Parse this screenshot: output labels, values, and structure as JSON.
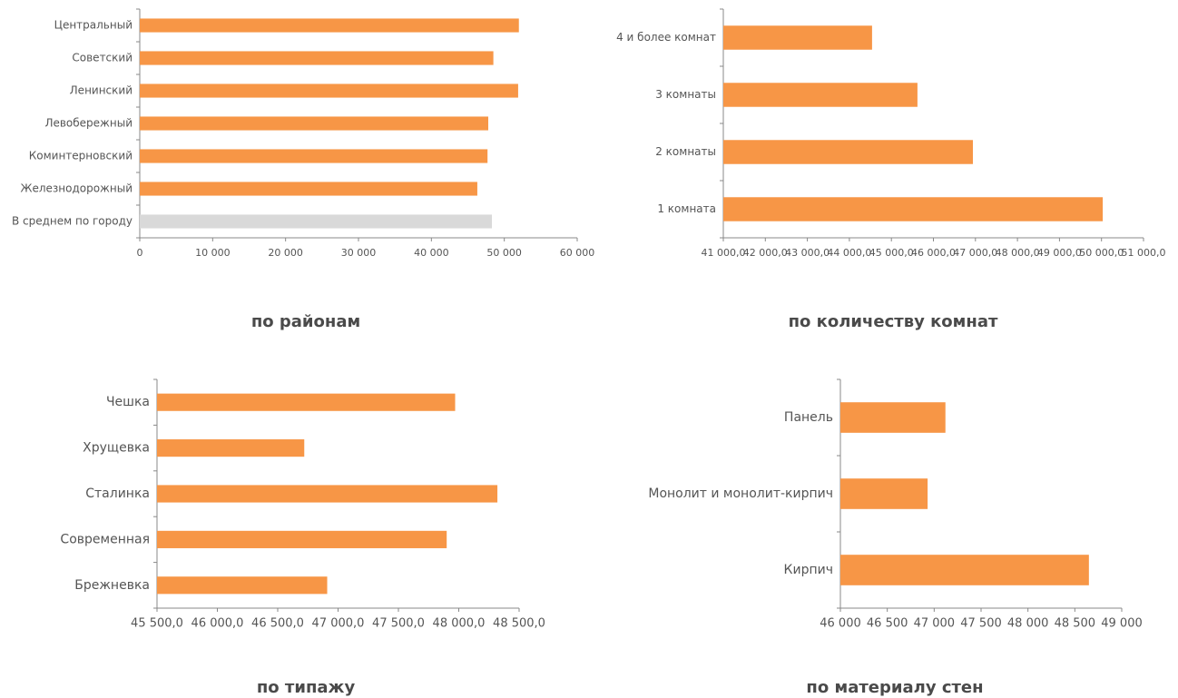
{
  "chart_data": [
    {
      "type": "bar",
      "orientation": "horizontal",
      "title": "по районам",
      "categories": [
        "Центральный",
        "Советский",
        "Ленинский",
        "Левобережный",
        "Коминтерновский",
        "Железнодорожный",
        "В среднем по городу"
      ],
      "values": [
        52000,
        48500,
        51900,
        47800,
        47700,
        46300,
        48300
      ],
      "colors": [
        "#f79646",
        "#f79646",
        "#f79646",
        "#f79646",
        "#f79646",
        "#f79646",
        "#d9d9d9"
      ],
      "xlim": [
        0,
        60000
      ],
      "xticks": [
        0,
        {
          "value": 10000,
          "label": "10 000"
        },
        {
          "value": 20000,
          "label": "20 000"
        },
        {
          "value": 30000,
          "label": "30 000"
        },
        {
          "value": 40000,
          "label": "40 000"
        },
        {
          "value": 50000,
          "label": "50 000"
        },
        {
          "value": 60000,
          "label": "60 000"
        }
      ]
    },
    {
      "type": "bar",
      "orientation": "horizontal",
      "title": "по количеству комнат",
      "categories": [
        "4 и более комнат",
        "3 комнаты",
        "2 комнаты",
        "1 комната"
      ],
      "values": [
        44540,
        45620,
        46940,
        50030
      ],
      "color": "#f79646",
      "xlim": [
        41000,
        51000
      ],
      "xticks": [
        {
          "value": 41000,
          "label": "41 000,0"
        },
        {
          "value": 42000,
          "label": "42 000,0"
        },
        {
          "value": 43000,
          "label": "43 000,0"
        },
        {
          "value": 44000,
          "label": "44 000,0"
        },
        {
          "value": 45000,
          "label": "45 000,0"
        },
        {
          "value": 46000,
          "label": "46 000,0"
        },
        {
          "value": 47000,
          "label": "47 000,0"
        },
        {
          "value": 48000,
          "label": "48 000,0"
        },
        {
          "value": 49000,
          "label": "49 000,0"
        },
        {
          "value": 50000,
          "label": "50 000,0"
        },
        {
          "value": 51000,
          "label": "51 000,0"
        }
      ]
    },
    {
      "type": "bar",
      "orientation": "horizontal",
      "title": "по типажу",
      "categories": [
        "Чешка",
        "Хрущевка",
        "Сталинка",
        "Современная",
        "Брежневка"
      ],
      "values": [
        47970,
        46720,
        48320,
        47900,
        46910
      ],
      "color": "#f79646",
      "xlim": [
        45500,
        48500
      ],
      "xticks": [
        {
          "value": 45500,
          "label": "45 500,0"
        },
        {
          "value": 46000,
          "label": "46 000,0"
        },
        {
          "value": 46500,
          "label": "46 500,0"
        },
        {
          "value": 47000,
          "label": "47 000,0"
        },
        {
          "value": 47500,
          "label": "47 500,0"
        },
        {
          "value": 48000,
          "label": "48 000,0"
        },
        {
          "value": 48500,
          "label": "48 500,0"
        }
      ]
    },
    {
      "type": "bar",
      "orientation": "horizontal",
      "title": "по материалу стен",
      "categories": [
        "Панель",
        "Монолит и монолит-кирпич",
        "Кирпич"
      ],
      "values": [
        47120,
        46930,
        48650
      ],
      "color": "#f79646",
      "xlim": [
        46000,
        49000
      ],
      "xticks": [
        {
          "value": 46000,
          "label": "46 000"
        },
        {
          "value": 46500,
          "label": "46 500"
        },
        {
          "value": 47000,
          "label": "47 000"
        },
        {
          "value": 47500,
          "label": "47 500"
        },
        {
          "value": 48000,
          "label": "48 000"
        },
        {
          "value": 48500,
          "label": "48 500"
        },
        {
          "value": 49000,
          "label": "49 000"
        }
      ]
    }
  ]
}
